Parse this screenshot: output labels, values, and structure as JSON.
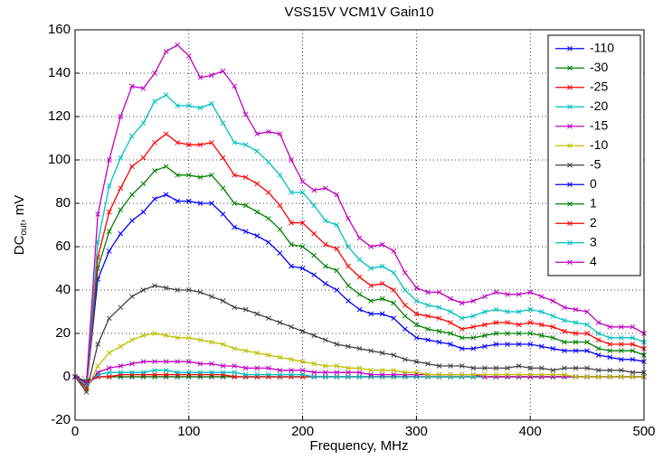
{
  "chart_data": {
    "type": "line",
    "title": "VSS15V VCM1V Gain10",
    "x_label": "Frequency, MHz",
    "y_label": {
      "main": "DC",
      "sub": "out",
      "rest": ", mV"
    },
    "xlim": [
      0,
      500
    ],
    "xticks": [
      0,
      100,
      200,
      300,
      400,
      500
    ],
    "ylim": [
      -20,
      160
    ],
    "yticks": [
      -20,
      0,
      20,
      40,
      60,
      80,
      100,
      120,
      140,
      160
    ],
    "grid": true,
    "legend": "upper right",
    "x": [
      0,
      10,
      20,
      30,
      40,
      50,
      60,
      70,
      80,
      90,
      100,
      110,
      120,
      130,
      140,
      150,
      160,
      170,
      180,
      190,
      200,
      210,
      220,
      230,
      240,
      250,
      260,
      270,
      280,
      290,
      300,
      310,
      320,
      330,
      340,
      350,
      360,
      370,
      380,
      390,
      400,
      410,
      420,
      430,
      440,
      450,
      460,
      470,
      480,
      490,
      500
    ],
    "series": [
      {
        "name": "-110",
        "color": "#0000ff",
        "values": [
          0,
          -2,
          0,
          0,
          0,
          0,
          0,
          0,
          0,
          0,
          0,
          0,
          0,
          0,
          0,
          0,
          0,
          0,
          0,
          0,
          0,
          0,
          0,
          0,
          0,
          0,
          0,
          0,
          0,
          0,
          0,
          0,
          0,
          0,
          0,
          0,
          0,
          0,
          0,
          0,
          0,
          0,
          0,
          0,
          0,
          0,
          0,
          0,
          0,
          0,
          0
        ]
      },
      {
        "name": "-30",
        "color": "#008000",
        "values": [
          0,
          -2,
          0,
          0,
          0,
          0,
          0,
          0,
          0,
          0,
          0,
          0,
          0,
          0,
          0,
          0,
          0,
          0,
          0,
          0,
          0,
          0,
          0,
          0,
          0,
          0,
          0,
          0,
          0,
          0,
          0,
          0,
          0,
          0,
          0,
          0,
          0,
          0,
          0,
          0,
          0,
          0,
          0,
          0,
          0,
          0,
          0,
          0,
          0,
          0,
          0
        ]
      },
      {
        "name": "-25",
        "color": "#ff0000",
        "values": [
          0,
          -3,
          0,
          0,
          1,
          1,
          1,
          1,
          1,
          1,
          1,
          1,
          1,
          1,
          0,
          0,
          0,
          0,
          0,
          0,
          0,
          0,
          0,
          0,
          0,
          0,
          0,
          0,
          0,
          0,
          0,
          0,
          0,
          0,
          0,
          0,
          0,
          0,
          0,
          0,
          0,
          0,
          0,
          0,
          0,
          0,
          0,
          0,
          0,
          0,
          0
        ]
      },
      {
        "name": "-20",
        "color": "#00bfbf",
        "values": [
          0,
          -4,
          1,
          2,
          2,
          2,
          2,
          3,
          3,
          2,
          2,
          2,
          2,
          2,
          2,
          1,
          1,
          1,
          1,
          1,
          1,
          0,
          0,
          0,
          0,
          0,
          0,
          0,
          0,
          0,
          0,
          0,
          0,
          0,
          0,
          0,
          0,
          0,
          0,
          0,
          0,
          0,
          0,
          0,
          0,
          0,
          0,
          0,
          0,
          0,
          0
        ]
      },
      {
        "name": "-15",
        "color": "#bf00bf",
        "values": [
          0,
          -5,
          2,
          4,
          5,
          6,
          7,
          7,
          7,
          7,
          7,
          6,
          6,
          5,
          5,
          4,
          4,
          4,
          3,
          3,
          3,
          2,
          2,
          2,
          2,
          2,
          1,
          1,
          1,
          1,
          1,
          1,
          1,
          1,
          1,
          1,
          0,
          0,
          0,
          0,
          0,
          0,
          0,
          0,
          0,
          0,
          0,
          0,
          0,
          0,
          0
        ]
      },
      {
        "name": "-10",
        "color": "#bfbf00",
        "values": [
          0,
          -6,
          5,
          11,
          14,
          17,
          19,
          20,
          19,
          18,
          18,
          17,
          16,
          15,
          13,
          12,
          11,
          10,
          9,
          8,
          7,
          6,
          5,
          5,
          4,
          4,
          3,
          3,
          3,
          2,
          2,
          1,
          1,
          1,
          1,
          1,
          1,
          1,
          1,
          1,
          1,
          1,
          1,
          1,
          0,
          0,
          0,
          0,
          0,
          0,
          0
        ]
      },
      {
        "name": "-5",
        "color": "#404040",
        "values": [
          0,
          -7,
          15,
          27,
          32,
          37,
          40,
          42,
          41,
          40,
          40,
          39,
          37,
          35,
          32,
          31,
          29,
          27,
          25,
          23,
          21,
          19,
          17,
          15,
          14,
          13,
          12,
          11,
          10,
          8,
          7,
          6,
          5,
          5,
          5,
          4,
          4,
          4,
          4,
          5,
          4,
          4,
          3,
          4,
          4,
          4,
          3,
          3,
          3,
          2,
          2
        ]
      },
      {
        "name": "0",
        "color": "#0000ff",
        "values": [
          0,
          -5,
          45,
          58,
          66,
          72,
          76,
          82,
          84,
          81,
          81,
          80,
          80,
          75,
          69,
          67,
          65,
          62,
          57,
          51,
          50,
          47,
          43,
          40,
          35,
          31,
          29,
          29,
          27,
          22,
          18,
          17,
          16,
          15,
          13,
          13,
          14,
          15,
          15,
          15,
          15,
          14,
          13,
          12,
          12,
          12,
          10,
          9,
          8,
          8,
          7
        ]
      },
      {
        "name": "1",
        "color": "#008000",
        "values": [
          0,
          -5,
          50,
          67,
          77,
          84,
          89,
          95,
          97,
          93,
          93,
          92,
          93,
          87,
          80,
          79,
          76,
          73,
          68,
          61,
          60,
          56,
          51,
          49,
          42,
          38,
          35,
          36,
          34,
          28,
          24,
          22,
          21,
          20,
          18,
          18,
          19,
          20,
          20,
          20,
          20,
          19,
          18,
          16,
          16,
          16,
          13,
          12,
          12,
          12,
          10
        ]
      },
      {
        "name": "2",
        "color": "#ff0000",
        "values": [
          0,
          -5,
          55,
          76,
          87,
          97,
          101,
          108,
          112,
          108,
          107,
          107,
          108,
          101,
          93,
          92,
          89,
          85,
          79,
          71,
          71,
          66,
          61,
          59,
          51,
          46,
          42,
          43,
          40,
          33,
          29,
          28,
          27,
          25,
          22,
          23,
          24,
          25,
          25,
          24,
          25,
          24,
          23,
          21,
          20,
          20,
          17,
          15,
          15,
          15,
          13
        ]
      },
      {
        "name": "3",
        "color": "#00bfbf",
        "values": [
          0,
          -4,
          62,
          88,
          101,
          111,
          117,
          127,
          130,
          125,
          125,
          124,
          126,
          117,
          108,
          107,
          104,
          99,
          93,
          85,
          85,
          79,
          72,
          70,
          60,
          54,
          50,
          51,
          48,
          40,
          35,
          33,
          32,
          30,
          27,
          28,
          30,
          31,
          30,
          30,
          31,
          30,
          28,
          26,
          25,
          24,
          20,
          18,
          18,
          18,
          16
        ]
      },
      {
        "name": "4",
        "color": "#bf00bf",
        "values": [
          0,
          -3,
          75,
          100,
          120,
          134,
          133,
          140,
          150,
          153,
          148,
          138,
          139,
          141,
          134,
          121,
          112,
          113,
          112,
          100,
          90,
          86,
          87,
          84,
          73,
          64,
          60,
          61,
          58,
          48,
          41,
          39,
          39,
          36,
          34,
          35,
          37,
          39,
          38,
          38,
          39,
          37,
          35,
          32,
          31,
          30,
          25,
          23,
          23,
          23,
          20
        ]
      }
    ]
  }
}
